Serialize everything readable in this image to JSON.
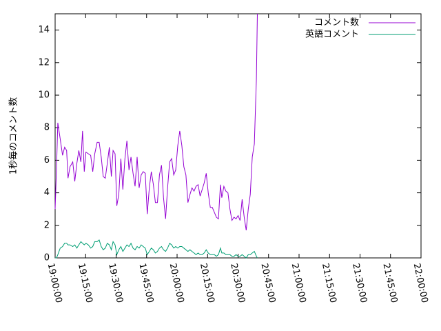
{
  "chart_data": {
    "type": "line",
    "title": "",
    "xlabel": "",
    "ylabel": "1秒毎のコメント数",
    "xlim": [
      "19:00:00",
      "22:00:00"
    ],
    "ylim": [
      0,
      15
    ],
    "x_ticks": [
      "19:00:00",
      "19:15:00",
      "19:30:00",
      "19:45:00",
      "20:00:00",
      "20:15:00",
      "20:30:00",
      "20:45:00",
      "21:00:00",
      "21:15:00",
      "21:30:00",
      "21:45:00",
      "22:00:00"
    ],
    "y_ticks": [
      0,
      2,
      4,
      6,
      8,
      10,
      12,
      14
    ],
    "legend_position": "top-right",
    "grid": false,
    "series": [
      {
        "name": "コメント数",
        "color": "#9400d3",
        "points": [
          [
            "19:00:00",
            3.0
          ],
          [
            "19:00:40",
            5.5
          ],
          [
            "19:01:20",
            8.3
          ],
          [
            "19:02:30",
            7.3
          ],
          [
            "19:03:40",
            6.3
          ],
          [
            "19:04:40",
            6.8
          ],
          [
            "19:05:40",
            6.6
          ],
          [
            "19:06:20",
            4.9
          ],
          [
            "19:07:20",
            5.6
          ],
          [
            "19:08:40",
            5.9
          ],
          [
            "19:09:40",
            4.7
          ],
          [
            "19:10:40",
            5.8
          ],
          [
            "19:11:40",
            6.6
          ],
          [
            "19:12:40",
            5.9
          ],
          [
            "19:13:30",
            7.8
          ],
          [
            "19:14:20",
            5.3
          ],
          [
            "19:15:10",
            6.5
          ],
          [
            "19:16:20",
            6.4
          ],
          [
            "19:17:30",
            6.3
          ],
          [
            "19:18:30",
            5.3
          ],
          [
            "19:19:30",
            6.4
          ],
          [
            "19:20:40",
            7.1
          ],
          [
            "19:21:40",
            7.1
          ],
          [
            "19:22:40",
            6.2
          ],
          [
            "19:23:40",
            5.0
          ],
          [
            "19:24:40",
            4.9
          ],
          [
            "19:25:40",
            5.8
          ],
          [
            "19:26:40",
            6.8
          ],
          [
            "19:27:40",
            5.0
          ],
          [
            "19:28:30",
            6.6
          ],
          [
            "19:29:30",
            6.4
          ],
          [
            "19:30:20",
            3.2
          ],
          [
            "19:31:20",
            3.9
          ],
          [
            "19:32:20",
            6.1
          ],
          [
            "19:33:20",
            4.2
          ],
          [
            "19:34:20",
            6.1
          ],
          [
            "19:35:20",
            7.2
          ],
          [
            "19:36:20",
            5.4
          ],
          [
            "19:37:20",
            6.2
          ],
          [
            "19:38:20",
            5.2
          ],
          [
            "19:39:20",
            4.4
          ],
          [
            "19:40:20",
            6.2
          ],
          [
            "19:41:20",
            4.3
          ],
          [
            "19:42:20",
            5.1
          ],
          [
            "19:43:20",
            5.3
          ],
          [
            "19:44:20",
            5.2
          ],
          [
            "19:45:20",
            2.7
          ],
          [
            "19:46:20",
            4.3
          ],
          [
            "19:47:20",
            5.3
          ],
          [
            "19:48:20",
            4.5
          ],
          [
            "19:49:20",
            3.4
          ],
          [
            "19:50:20",
            3.4
          ],
          [
            "19:51:20",
            5.1
          ],
          [
            "19:52:20",
            5.7
          ],
          [
            "19:53:20",
            3.7
          ],
          [
            "19:54:20",
            2.4
          ],
          [
            "19:55:20",
            4.3
          ],
          [
            "19:56:20",
            5.9
          ],
          [
            "19:57:20",
            6.1
          ],
          [
            "19:58:20",
            5.1
          ],
          [
            "19:59:20",
            5.4
          ],
          [
            "20:00:20",
            6.9
          ],
          [
            "20:01:20",
            7.8
          ],
          [
            "20:02:20",
            6.9
          ],
          [
            "20:03:20",
            5.6
          ],
          [
            "20:04:20",
            5.1
          ],
          [
            "20:05:20",
            3.4
          ],
          [
            "20:06:20",
            3.9
          ],
          [
            "20:07:20",
            4.3
          ],
          [
            "20:08:20",
            4.1
          ],
          [
            "20:09:20",
            4.4
          ],
          [
            "20:10:20",
            4.5
          ],
          [
            "20:11:20",
            3.8
          ],
          [
            "20:12:20",
            4.2
          ],
          [
            "20:13:20",
            4.6
          ],
          [
            "20:14:20",
            5.2
          ],
          [
            "20:15:20",
            4.0
          ],
          [
            "20:16:20",
            3.1
          ],
          [
            "20:17:20",
            3.1
          ],
          [
            "20:18:20",
            2.8
          ],
          [
            "20:19:20",
            2.5
          ],
          [
            "20:20:20",
            2.4
          ],
          [
            "20:21:20",
            4.5
          ],
          [
            "20:22:00",
            3.7
          ],
          [
            "20:23:00",
            4.4
          ],
          [
            "20:24:00",
            4.1
          ],
          [
            "20:25:00",
            4.0
          ],
          [
            "20:26:00",
            3.0
          ],
          [
            "20:27:00",
            2.3
          ],
          [
            "20:28:00",
            2.5
          ],
          [
            "20:29:00",
            2.4
          ],
          [
            "20:30:00",
            2.6
          ],
          [
            "20:31:00",
            2.3
          ],
          [
            "20:32:00",
            3.6
          ],
          [
            "20:33:00",
            2.5
          ],
          [
            "20:34:00",
            1.7
          ],
          [
            "20:35:00",
            3.0
          ],
          [
            "20:36:00",
            3.9
          ],
          [
            "20:37:00",
            6.2
          ],
          [
            "20:38:00",
            7.0
          ],
          [
            "20:39:00",
            11.0
          ],
          [
            "20:39:30",
            15.0
          ]
        ]
      },
      {
        "name": "英語コメント",
        "color": "#009e73",
        "points": [
          [
            "19:00:00",
            0.0
          ],
          [
            "19:00:40",
            0.0
          ],
          [
            "19:01:20",
            0.2
          ],
          [
            "19:02:30",
            0.6
          ],
          [
            "19:03:40",
            0.7
          ],
          [
            "19:04:40",
            0.9
          ],
          [
            "19:05:40",
            0.9
          ],
          [
            "19:06:20",
            0.8
          ],
          [
            "19:07:20",
            0.8
          ],
          [
            "19:08:40",
            0.7
          ],
          [
            "19:09:40",
            0.8
          ],
          [
            "19:10:40",
            0.6
          ],
          [
            "19:11:40",
            0.8
          ],
          [
            "19:12:40",
            1.0
          ],
          [
            "19:13:30",
            0.9
          ],
          [
            "19:14:20",
            0.8
          ],
          [
            "19:15:10",
            0.9
          ],
          [
            "19:16:20",
            0.8
          ],
          [
            "19:17:30",
            0.6
          ],
          [
            "19:18:30",
            0.7
          ],
          [
            "19:19:30",
            1.0
          ],
          [
            "19:20:40",
            1.0
          ],
          [
            "19:21:40",
            1.1
          ],
          [
            "19:22:40",
            0.7
          ],
          [
            "19:23:40",
            0.5
          ],
          [
            "19:24:40",
            0.6
          ],
          [
            "19:25:40",
            0.9
          ],
          [
            "19:26:40",
            0.8
          ],
          [
            "19:27:40",
            0.5
          ],
          [
            "19:28:30",
            1.0
          ],
          [
            "19:29:30",
            0.8
          ],
          [
            "19:30:20",
            0.2
          ],
          [
            "19:31:20",
            0.5
          ],
          [
            "19:32:20",
            0.7
          ],
          [
            "19:33:20",
            0.4
          ],
          [
            "19:34:20",
            0.6
          ],
          [
            "19:35:20",
            0.8
          ],
          [
            "19:36:20",
            0.7
          ],
          [
            "19:37:20",
            0.9
          ],
          [
            "19:38:20",
            0.6
          ],
          [
            "19:39:20",
            0.5
          ],
          [
            "19:40:20",
            0.7
          ],
          [
            "19:41:20",
            0.6
          ],
          [
            "19:42:20",
            0.8
          ],
          [
            "19:43:20",
            0.7
          ],
          [
            "19:44:20",
            0.6
          ],
          [
            "19:45:20",
            0.2
          ],
          [
            "19:46:20",
            0.4
          ],
          [
            "19:47:20",
            0.6
          ],
          [
            "19:48:20",
            0.5
          ],
          [
            "19:49:20",
            0.3
          ],
          [
            "19:50:20",
            0.4
          ],
          [
            "19:51:20",
            0.6
          ],
          [
            "19:52:20",
            0.7
          ],
          [
            "19:53:20",
            0.5
          ],
          [
            "19:54:20",
            0.4
          ],
          [
            "19:55:20",
            0.6
          ],
          [
            "19:56:20",
            0.9
          ],
          [
            "19:57:20",
            0.8
          ],
          [
            "19:58:20",
            0.6
          ],
          [
            "19:59:20",
            0.7
          ],
          [
            "20:00:20",
            0.6
          ],
          [
            "20:01:20",
            0.7
          ],
          [
            "20:02:20",
            0.7
          ],
          [
            "20:03:20",
            0.6
          ],
          [
            "20:04:20",
            0.5
          ],
          [
            "20:05:20",
            0.4
          ],
          [
            "20:06:20",
            0.5
          ],
          [
            "20:07:20",
            0.4
          ],
          [
            "20:08:20",
            0.3
          ],
          [
            "20:09:20",
            0.2
          ],
          [
            "20:10:20",
            0.3
          ],
          [
            "20:11:20",
            0.2
          ],
          [
            "20:12:20",
            0.2
          ],
          [
            "20:13:20",
            0.3
          ],
          [
            "20:14:20",
            0.5
          ],
          [
            "20:15:20",
            0.3
          ],
          [
            "20:16:20",
            0.2
          ],
          [
            "20:17:20",
            0.2
          ],
          [
            "20:18:20",
            0.2
          ],
          [
            "20:19:20",
            0.1
          ],
          [
            "20:20:20",
            0.2
          ],
          [
            "20:21:20",
            0.6
          ],
          [
            "20:22:00",
            0.3
          ],
          [
            "20:23:00",
            0.3
          ],
          [
            "20:24:00",
            0.2
          ],
          [
            "20:25:00",
            0.2
          ],
          [
            "20:26:00",
            0.2
          ],
          [
            "20:27:00",
            0.1
          ],
          [
            "20:28:00",
            0.1
          ],
          [
            "20:29:00",
            0.2
          ],
          [
            "20:30:00",
            0.1
          ],
          [
            "20:31:00",
            0.1
          ],
          [
            "20:32:00",
            0.2
          ],
          [
            "20:33:00",
            0.1
          ],
          [
            "20:34:00",
            0.0
          ],
          [
            "20:35:00",
            0.2
          ],
          [
            "20:36:00",
            0.2
          ],
          [
            "20:37:00",
            0.3
          ],
          [
            "20:38:00",
            0.4
          ],
          [
            "20:39:00",
            0.1
          ],
          [
            "20:39:30",
            0.0
          ]
        ]
      }
    ]
  }
}
